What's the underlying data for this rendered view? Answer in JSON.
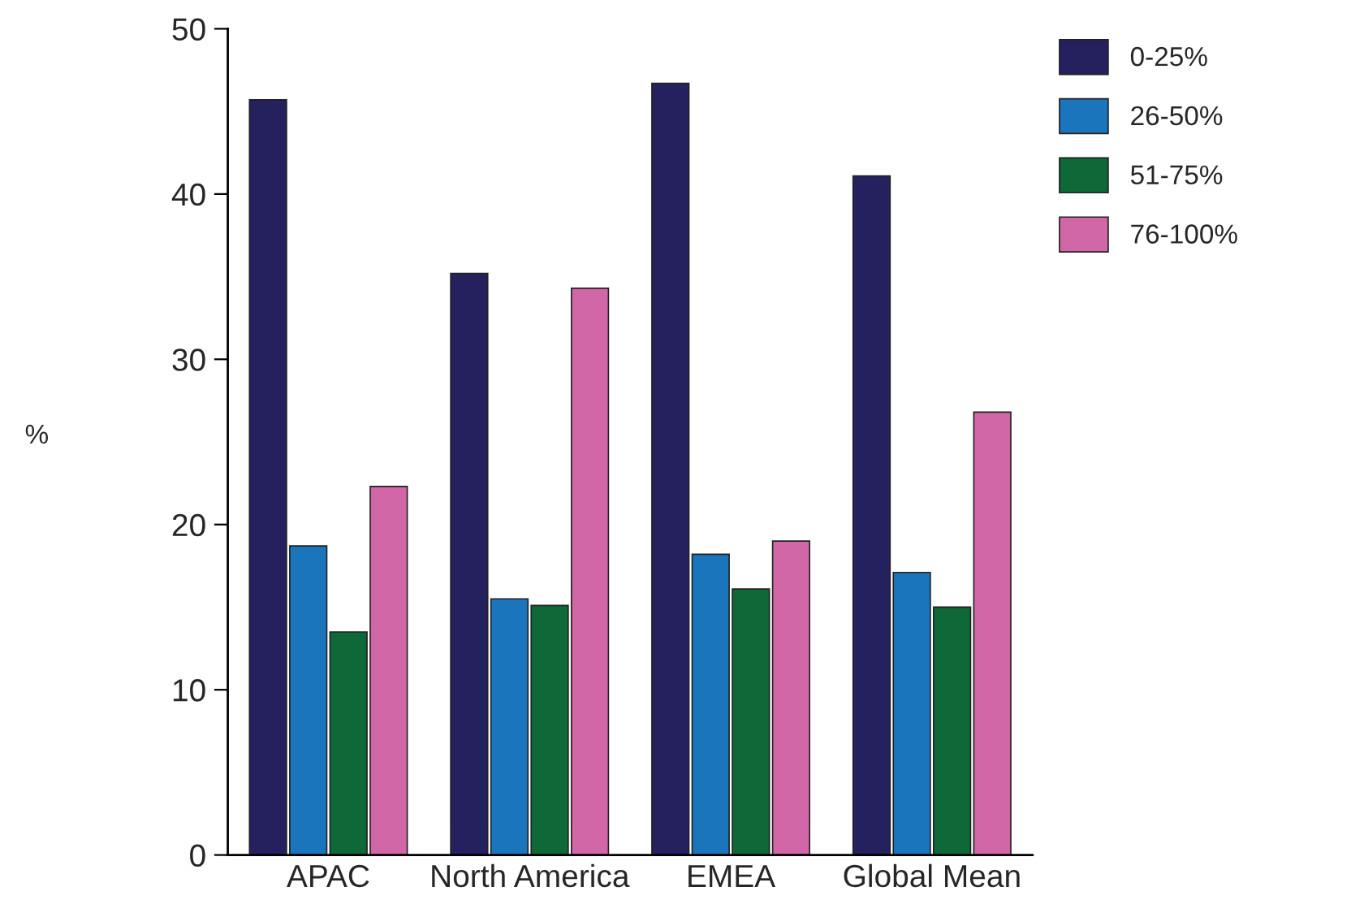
{
  "chart_data": {
    "type": "bar",
    "ylabel": "%",
    "categories": [
      "APAC",
      "North America",
      "EMEA",
      "Global Mean"
    ],
    "series": [
      {
        "name": "0-25%",
        "color": "#24215e",
        "values": [
          45.7,
          35.2,
          46.7,
          41.1
        ]
      },
      {
        "name": "26-50%",
        "color": "#1a75bc",
        "values": [
          18.7,
          15.5,
          18.2,
          17.1
        ]
      },
      {
        "name": "51-75%",
        "color": "#0e6837",
        "values": [
          13.5,
          15.1,
          16.1,
          15.0
        ]
      },
      {
        "name": "76-100%",
        "color": "#d267a8",
        "values": [
          22.3,
          34.3,
          19.0,
          26.8
        ]
      }
    ],
    "ylim": [
      0,
      50
    ],
    "yticks": [
      0,
      10,
      20,
      30,
      40,
      50
    ],
    "grid": false,
    "legend": "top right"
  }
}
